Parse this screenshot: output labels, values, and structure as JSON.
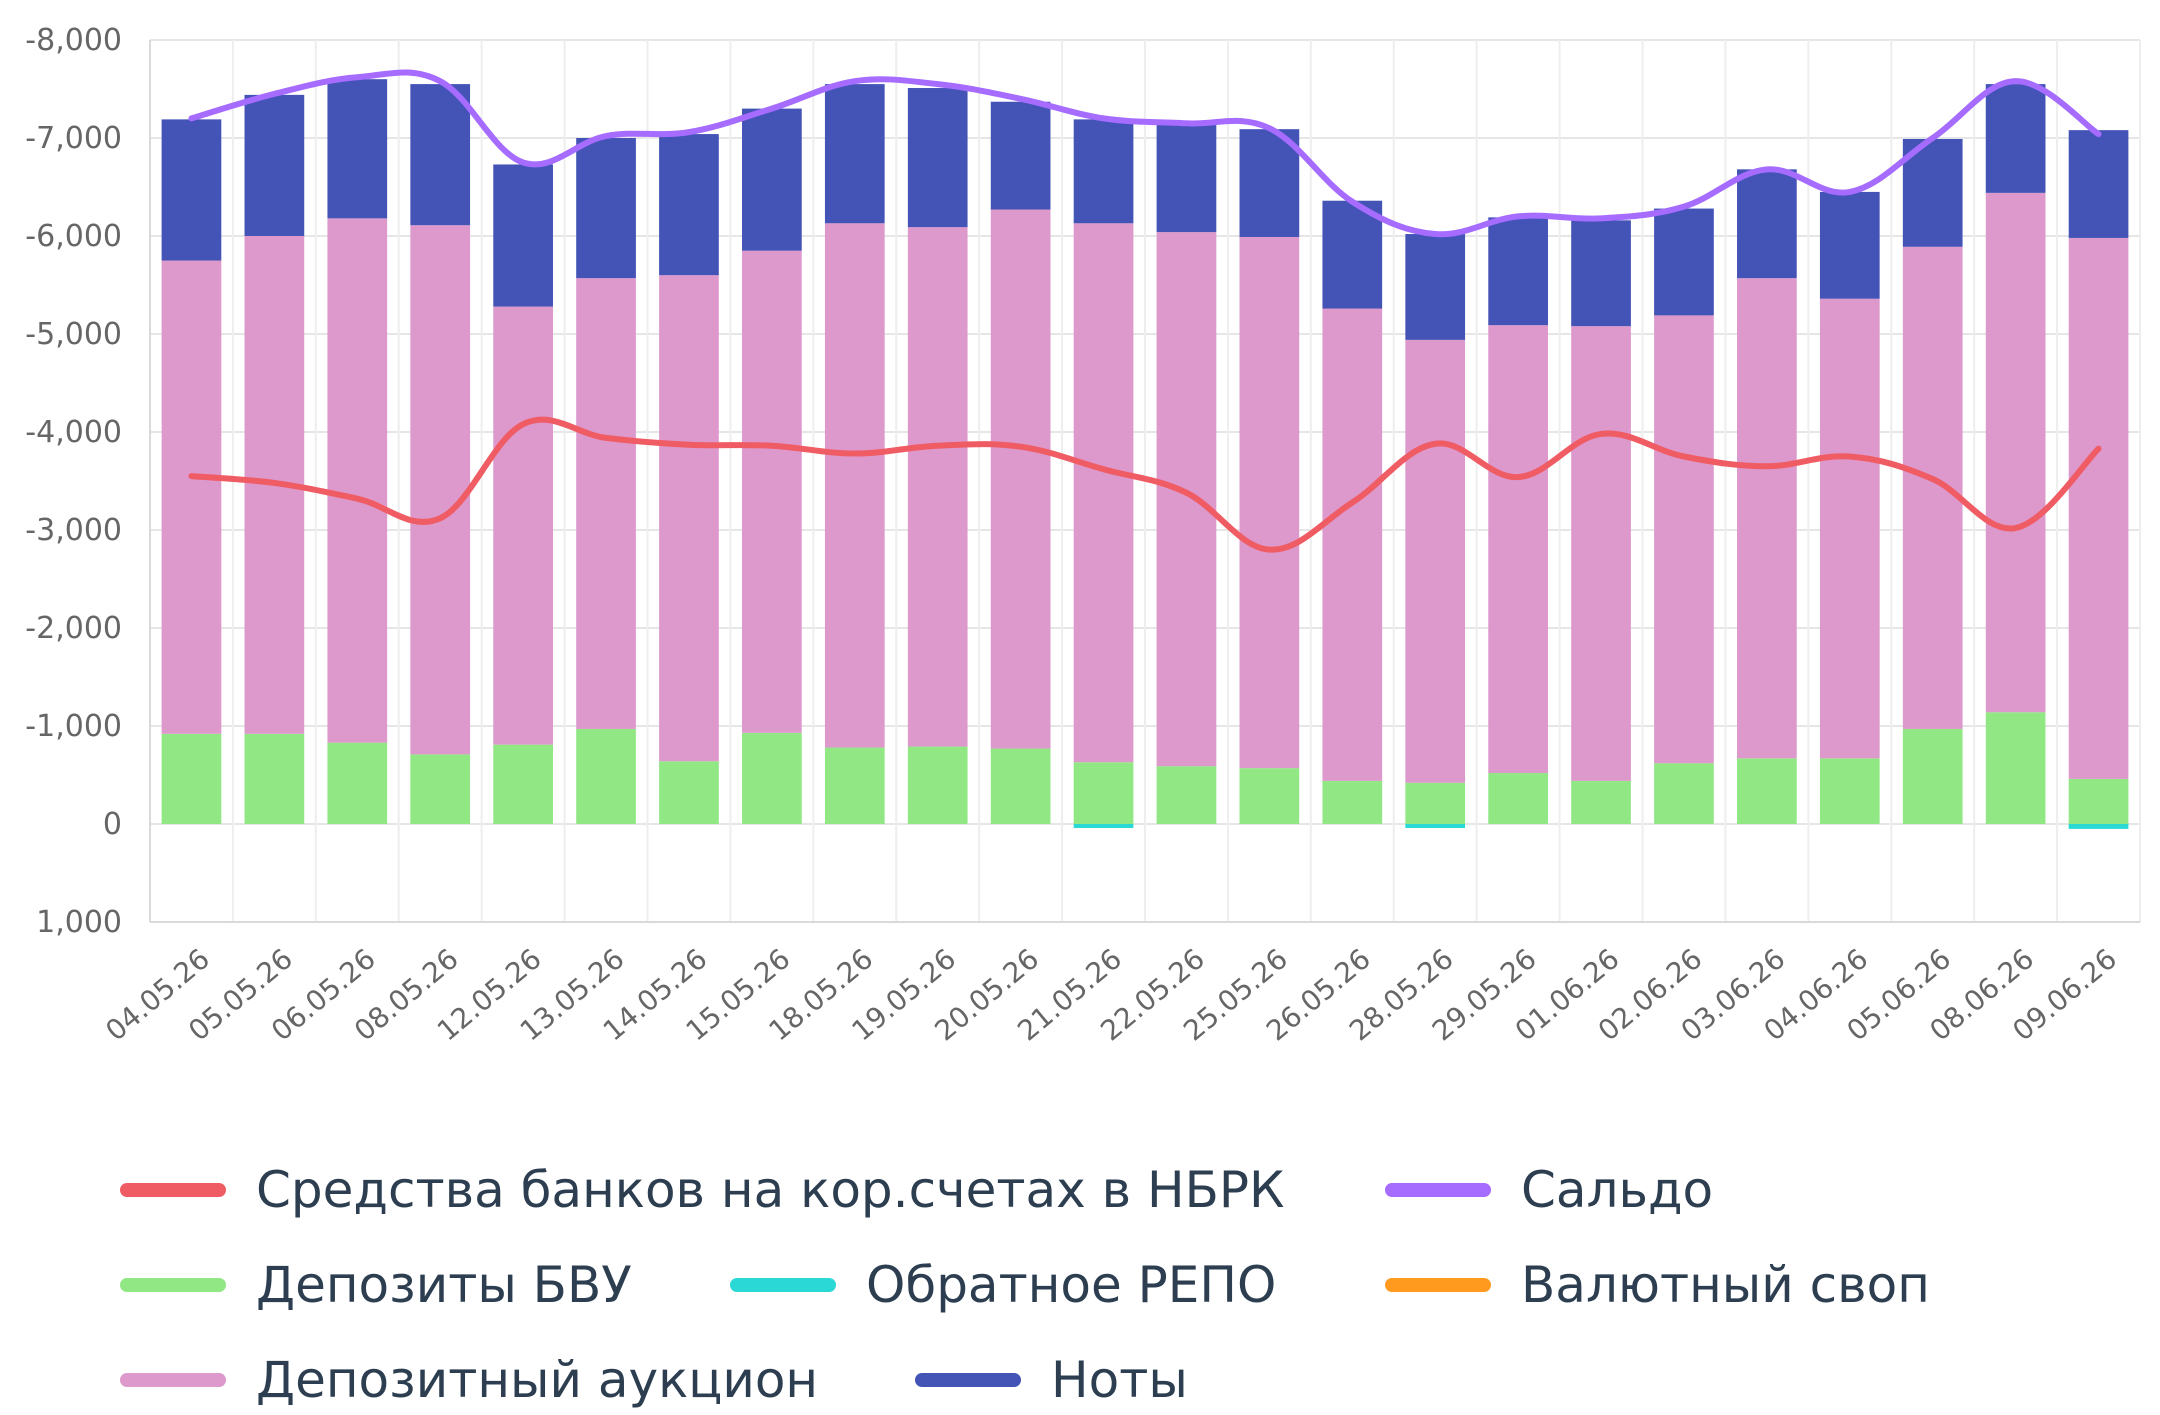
{
  "chart_data": {
    "type": "bar",
    "stacked": true,
    "y_inverted": true,
    "ylim": [
      -8000,
      1000
    ],
    "yticks": [
      -8000,
      -7000,
      -6000,
      -5000,
      -4000,
      -3000,
      -2000,
      -1000,
      0,
      1000
    ],
    "ytick_labels": [
      "-8,000",
      "-7,000",
      "-6,000",
      "-5,000",
      "-4,000",
      "-3,000",
      "-2,000",
      "-1,000",
      "0",
      "1,000"
    ],
    "grid": true,
    "legend_position": "bottom",
    "categories": [
      "04.05.26",
      "05.05.26",
      "06.05.26",
      "08.05.26",
      "12.05.26",
      "13.05.26",
      "14.05.26",
      "15.05.26",
      "18.05.26",
      "19.05.26",
      "20.05.26",
      "21.05.26",
      "22.05.26",
      "25.05.26",
      "26.05.26",
      "28.05.26",
      "29.05.26",
      "01.06.26",
      "02.06.26",
      "03.06.26",
      "04.06.26",
      "05.06.26",
      "08.06.26",
      "09.06.26"
    ],
    "series": [
      {
        "name": "Средства банков на кор.счетах в НБРК",
        "kind": "line",
        "color": "#f05c63",
        "values": [
          -3550,
          -3480,
          -3320,
          -3120,
          -4080,
          -3940,
          -3870,
          -3860,
          -3780,
          -3860,
          -3850,
          -3620,
          -3380,
          -2800,
          -3280,
          -3880,
          -3540,
          -3980,
          -3750,
          -3650,
          -3750,
          -3520,
          -3020,
          -3830
        ]
      },
      {
        "name": "Сальдо",
        "kind": "line",
        "color": "#a66bff",
        "values": [
          -7200,
          -7450,
          -7620,
          -7580,
          -6750,
          -7020,
          -7060,
          -7300,
          -7580,
          -7550,
          -7400,
          -7200,
          -7150,
          -7100,
          -6350,
          -6020,
          -6200,
          -6180,
          -6300,
          -6680,
          -6450,
          -7000,
          -7580,
          -7040
        ]
      },
      {
        "name": "Депозиты БВУ",
        "kind": "bar",
        "color": "#90e784",
        "values": [
          -920,
          -920,
          -830,
          -710,
          -810,
          -970,
          -640,
          -930,
          -780,
          -790,
          -770,
          -630,
          -590,
          -570,
          -440,
          -420,
          -520,
          -440,
          -620,
          -670,
          -670,
          -970,
          -1140,
          -460
        ]
      },
      {
        "name": "Обратное РЕПО",
        "kind": "bar",
        "color": "#2ad8d6",
        "values": [
          0,
          0,
          0,
          0,
          0,
          0,
          0,
          0,
          0,
          0,
          0,
          40,
          0,
          0,
          0,
          40,
          0,
          0,
          0,
          0,
          0,
          0,
          0,
          50
        ]
      },
      {
        "name": "Валютный своп",
        "kind": "bar",
        "color": "#ff9a1f",
        "values": [
          0,
          0,
          0,
          0,
          0,
          0,
          0,
          0,
          0,
          0,
          0,
          0,
          0,
          0,
          0,
          0,
          0,
          0,
          0,
          0,
          0,
          0,
          0,
          0
        ]
      },
      {
        "name": "Депозитный аукцион",
        "kind": "bar",
        "color": "#dd98cc",
        "values": [
          -4830,
          -5080,
          -5350,
          -5400,
          -4470,
          -4600,
          -4960,
          -4920,
          -5350,
          -5300,
          -5500,
          -5500,
          -5450,
          -5420,
          -4820,
          -4520,
          -4570,
          -4640,
          -4570,
          -4900,
          -4690,
          -4920,
          -5300,
          -5520
        ]
      },
      {
        "name": "Ноты",
        "kind": "bar",
        "color": "#4453b6",
        "values": [
          -1440,
          -1440,
          -1420,
          -1440,
          -1450,
          -1430,
          -1440,
          -1450,
          -1420,
          -1420,
          -1100,
          -1060,
          -1110,
          -1100,
          -1100,
          -1080,
          -1100,
          -1080,
          -1090,
          -1110,
          -1090,
          -1100,
          -1110,
          -1100
        ]
      }
    ]
  },
  "legend": {
    "items": [
      {
        "label": "Средства банков на кор.счетах в НБРК",
        "color": "#f05c63"
      },
      {
        "label": "Сальдо",
        "color": "#a66bff"
      },
      {
        "label": "Депозиты БВУ",
        "color": "#90e784"
      },
      {
        "label": "Обратное РЕПО",
        "color": "#2ad8d6"
      },
      {
        "label": "Валютный своп",
        "color": "#ff9a1f"
      },
      {
        "label": "Депозитный аукцион",
        "color": "#dd98cc"
      },
      {
        "label": "Ноты",
        "color": "#4453b6"
      }
    ]
  }
}
